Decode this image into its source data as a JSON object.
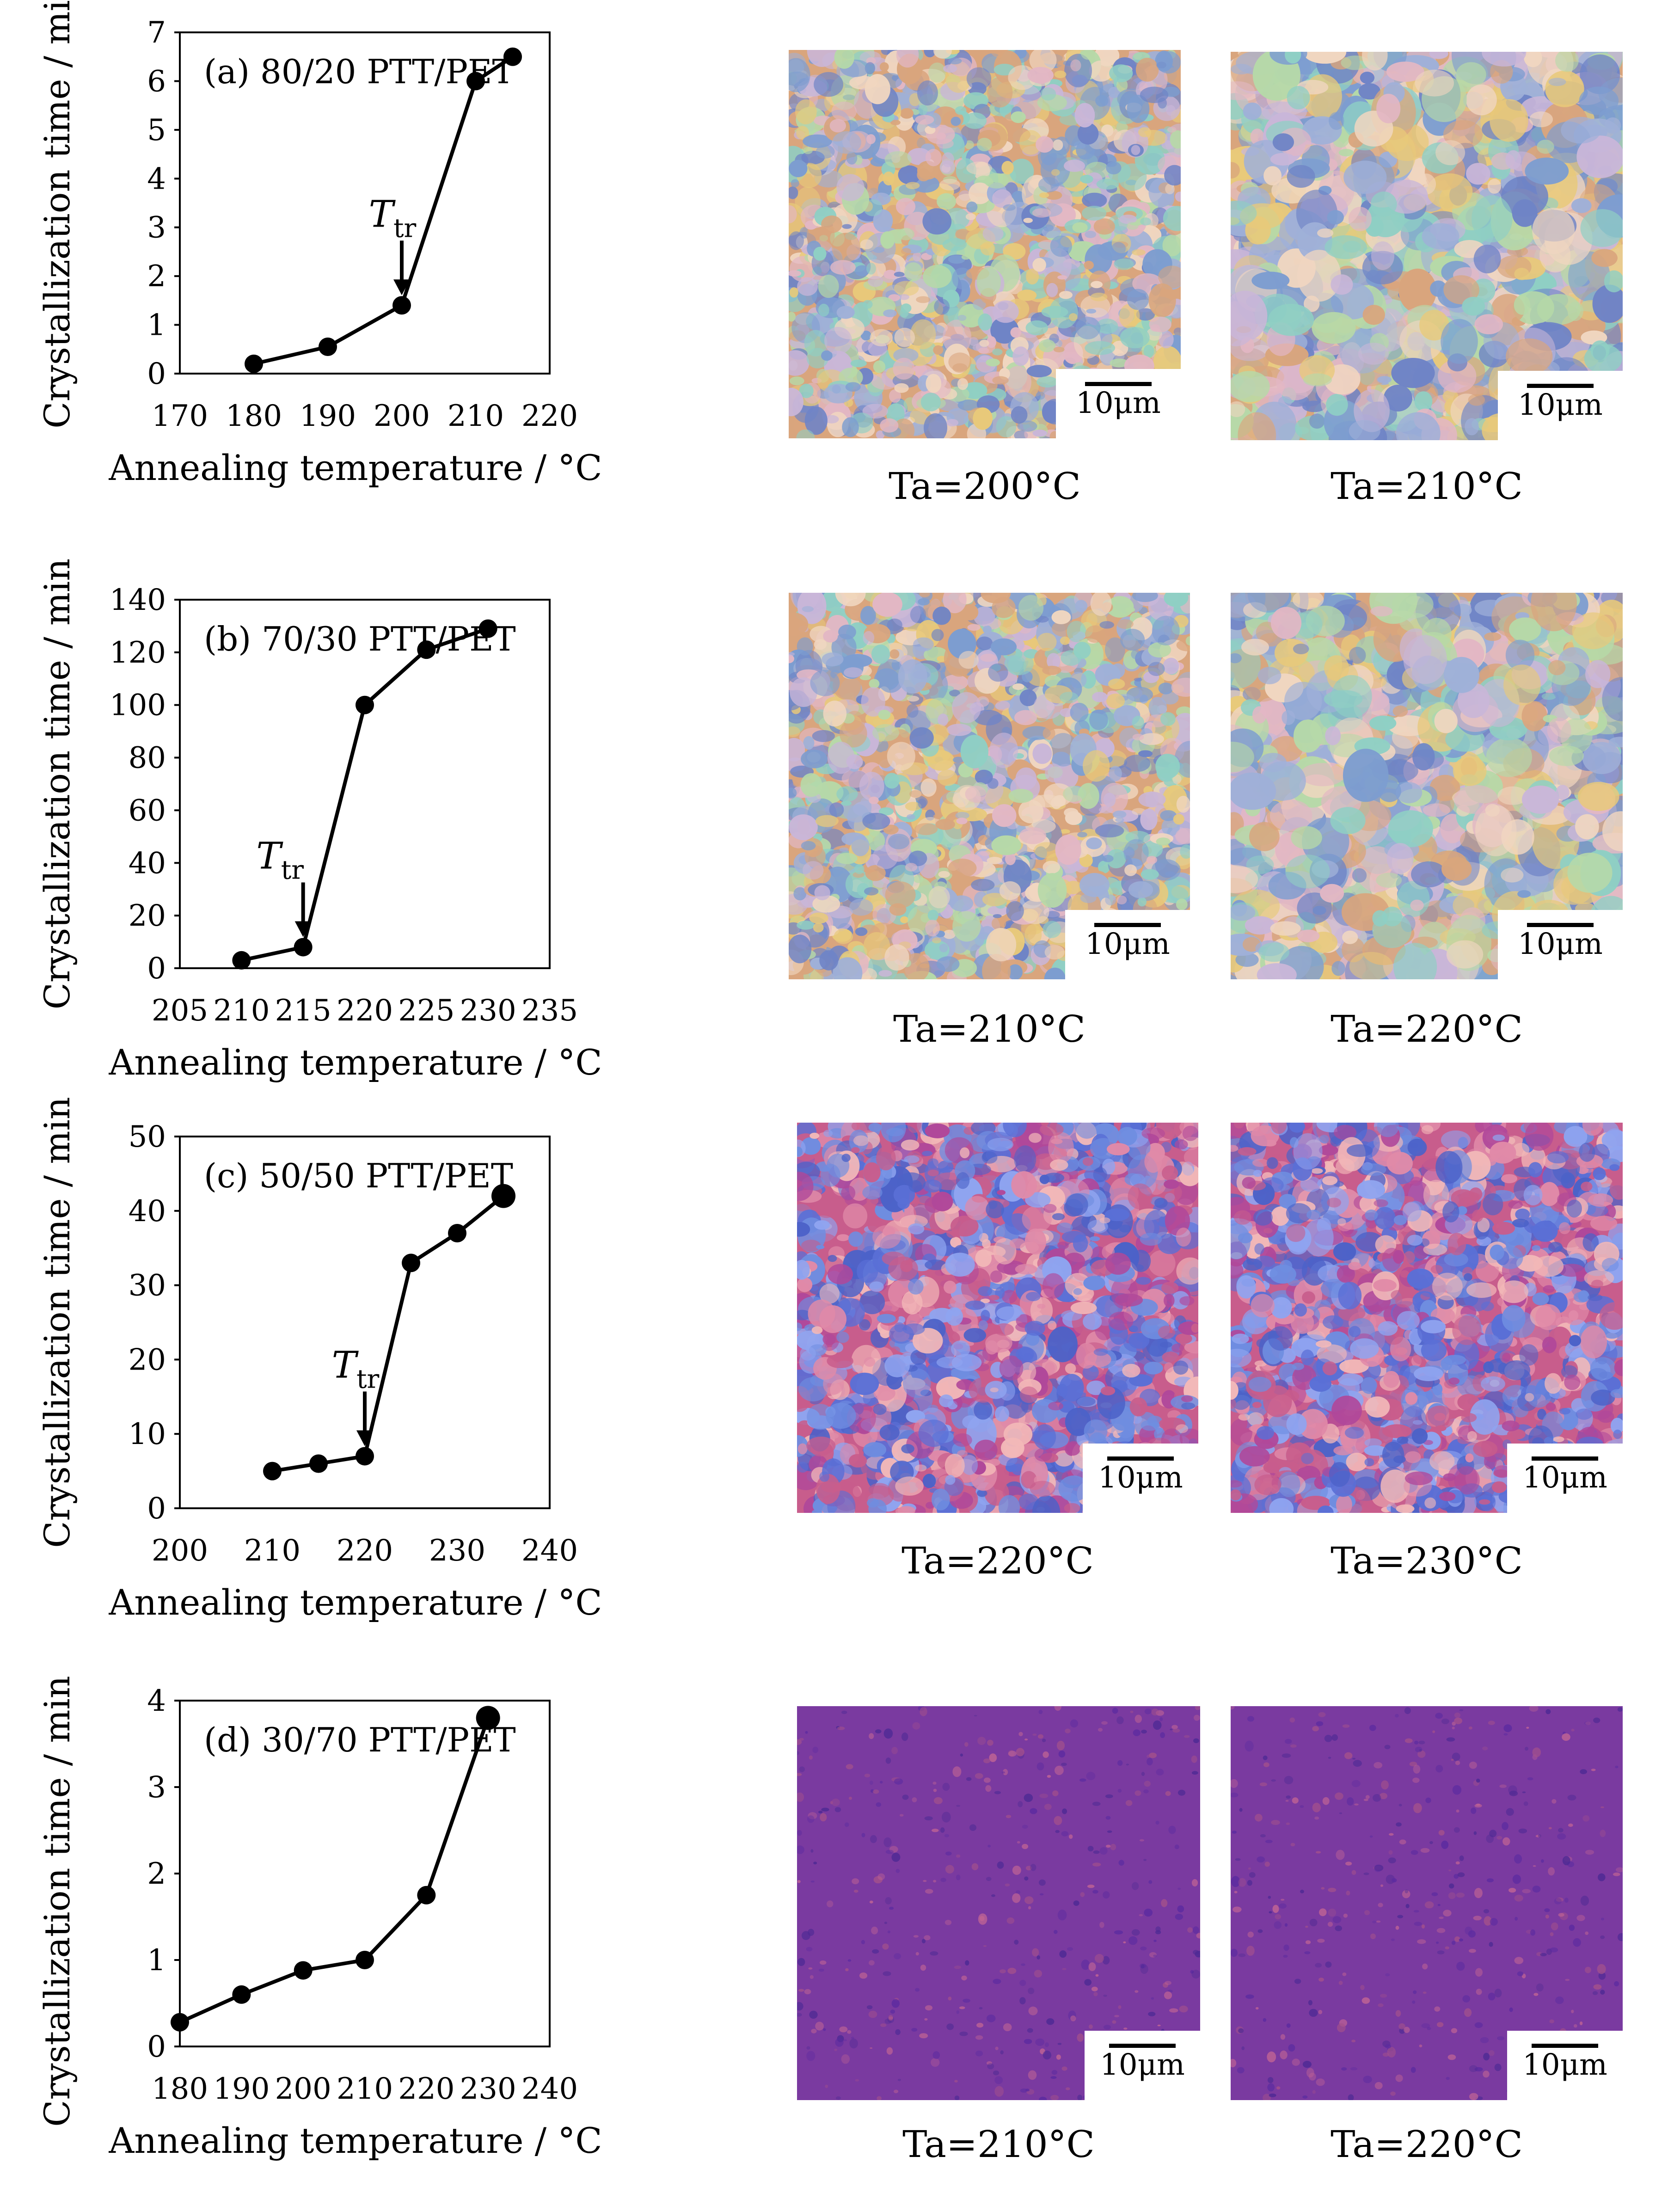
{
  "colors": {
    "line": "#000000",
    "bright_palette": [
      "#d9a57d",
      "#9fb0d8",
      "#6f84c6",
      "#e2b7c4",
      "#8fcfc4",
      "#e8c97a",
      "#c9b6d8",
      "#7d9dd0",
      "#f0d6c0",
      "#b6d9a8"
    ],
    "pink_blue_palette": [
      "#c85d8c",
      "#5a6fd6",
      "#e08aa8",
      "#4c62c8",
      "#f2b8b8",
      "#6f8de0",
      "#b0489a",
      "#8fa4f0"
    ],
    "purple_background": "#7a3aa0",
    "purple_spots": [
      "#a2508c",
      "#5c2ba0",
      "#c06494",
      "#4e2a94"
    ]
  },
  "chart_data": [
    {
      "type": "line",
      "label": "(a) 80/20 PTT/PET",
      "xlabel": "Annealing temperature / °C",
      "ylabel": "Crystallization time / min",
      "xlim": [
        170,
        220
      ],
      "ylim": [
        0,
        7
      ],
      "xticks": [
        170,
        180,
        190,
        200,
        210,
        220
      ],
      "yticks": [
        0,
        1,
        2,
        3,
        4,
        5,
        6,
        7
      ],
      "x": [
        180,
        190,
        200,
        210,
        215
      ],
      "values": [
        0.2,
        0.55,
        1.4,
        6.0,
        6.5
      ],
      "annotation": {
        "text": "T",
        "subscript": "tr",
        "x": 200,
        "y": 1.4
      },
      "images": [
        {
          "caption": "Ta=200°C",
          "scale_label": "10μm",
          "palette": "bright_palette"
        },
        {
          "caption": "Ta=210°C",
          "scale_label": "10μm",
          "palette": "bright_palette"
        }
      ]
    },
    {
      "type": "line",
      "label": "(b) 70/30 PTT/PET",
      "xlabel": "Annealing temperature / °C",
      "ylabel": "Crystallization time / min",
      "xlim": [
        205,
        235
      ],
      "ylim": [
        0,
        140
      ],
      "xticks": [
        205,
        210,
        215,
        220,
        225,
        230,
        235
      ],
      "yticks": [
        0,
        20,
        40,
        60,
        80,
        100,
        120,
        140
      ],
      "x": [
        210,
        215,
        220,
        225,
        230
      ],
      "values": [
        3,
        8,
        100,
        121,
        129
      ],
      "annotation": {
        "text": "T",
        "subscript": "tr",
        "x": 215,
        "y": 8
      },
      "images": [
        {
          "caption": "Ta=210°C",
          "scale_label": "10μm",
          "palette": "bright_palette"
        },
        {
          "caption": "Ta=220°C",
          "scale_label": "10μm",
          "palette": "bright_palette"
        }
      ]
    },
    {
      "type": "line",
      "label": "(c) 50/50 PTT/PET",
      "xlabel": "Annealing temperature / °C",
      "ylabel": "Crystallization time / min",
      "xlim": [
        200,
        240
      ],
      "ylim": [
        0,
        50
      ],
      "xticks": [
        200,
        210,
        220,
        230,
        240
      ],
      "yticks": [
        0,
        10,
        20,
        30,
        40,
        50
      ],
      "x": [
        210,
        215,
        220,
        225,
        230,
        235
      ],
      "values": [
        5,
        6,
        7,
        33,
        37,
        42
      ],
      "annotation": {
        "text": "T",
        "subscript": "tr",
        "x": 220,
        "y": 7
      },
      "images": [
        {
          "caption": "Ta=220°C",
          "scale_label": "10μm",
          "palette": "pink_blue_palette"
        },
        {
          "caption": "Ta=230°C",
          "scale_label": "10μm",
          "palette": "pink_blue_palette"
        }
      ]
    },
    {
      "type": "line",
      "label": "(d) 30/70 PTT/PET",
      "xlabel": "Annealing temperature / °C",
      "ylabel": "Crystallization time / min",
      "xlim": [
        180,
        240
      ],
      "ylim": [
        0,
        4
      ],
      "xticks": [
        180,
        190,
        200,
        210,
        220,
        230,
        240
      ],
      "yticks": [
        0,
        1,
        2,
        3,
        4
      ],
      "x": [
        180,
        190,
        200,
        210,
        220,
        230
      ],
      "values": [
        0.28,
        0.6,
        0.88,
        1.0,
        1.75,
        3.8
      ],
      "annotation": null,
      "images": [
        {
          "caption": "Ta=210°C",
          "scale_label": "10μm",
          "palette": "purple"
        },
        {
          "caption": "Ta=220°C",
          "scale_label": "10μm",
          "palette": "purple"
        }
      ]
    }
  ]
}
